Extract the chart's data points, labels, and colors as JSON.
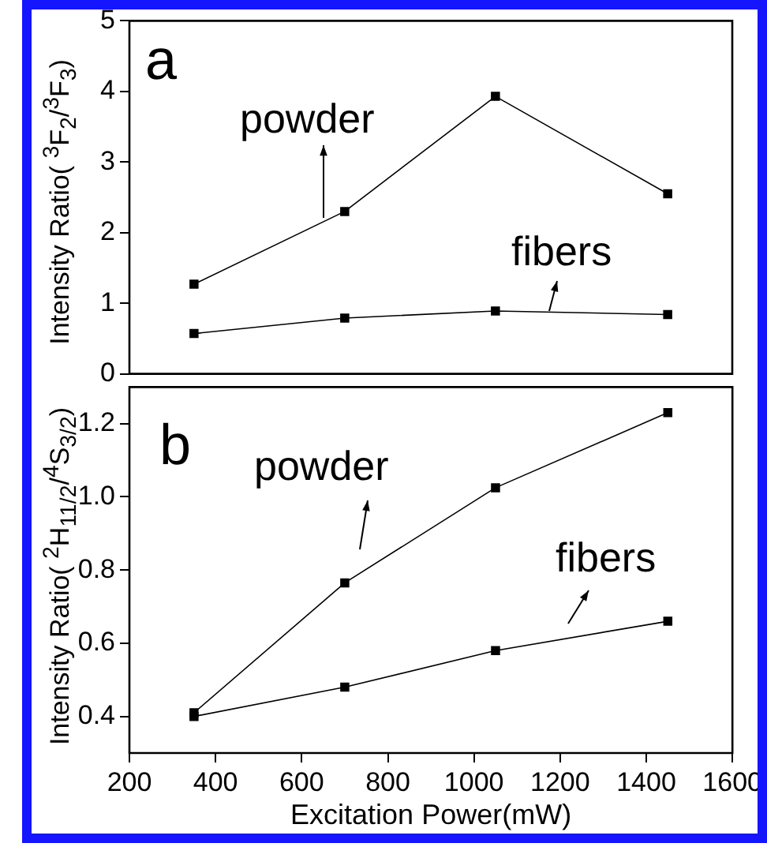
{
  "chart_data": [
    {
      "type": "line",
      "annotations": [
        "a"
      ],
      "ylabel": "Intensity Ratio( $^{3}$F$_{2}$/$^{3}$F$_{3}$)",
      "x": [
        350,
        700,
        1050,
        1450
      ],
      "series": [
        {
          "name": "powder",
          "color": "#000000",
          "values": [
            1.27,
            2.3,
            3.93,
            2.55
          ]
        },
        {
          "name": "fibers",
          "color": "#000000",
          "values": [
            0.57,
            0.79,
            0.89,
            0.84
          ]
        }
      ],
      "xlim": [
        200,
        1600
      ],
      "xticks": [
        200,
        400,
        600,
        800,
        1000,
        1200,
        1400,
        1600
      ],
      "ylim": [
        0,
        5
      ],
      "yticks": [
        0,
        1,
        2,
        3,
        4,
        5
      ],
      "tick_labels": "y",
      "marker": "square",
      "line_style": "solid"
    },
    {
      "type": "line",
      "annotations": [
        "b"
      ],
      "xlabel": "Excitation Power(mW)",
      "ylabel": "Intensity Ratio( $^{2}$H$_{11/2}$/$^{4}$S$_{3/2}$)",
      "x": [
        350,
        700,
        1050,
        1450
      ],
      "series": [
        {
          "name": "powder",
          "color": "#000000",
          "values": [
            0.41,
            0.765,
            1.025,
            1.23
          ]
        },
        {
          "name": "fibers",
          "color": "#000000",
          "values": [
            0.4,
            0.48,
            0.58,
            0.66
          ]
        }
      ],
      "xlim": [
        200,
        1600
      ],
      "xticks": [
        200,
        400,
        600,
        800,
        1000,
        1200,
        1400,
        1600
      ],
      "ylim": [
        0.3,
        1.3
      ],
      "yticks": [
        0.4,
        0.6,
        0.8,
        {
          "value": 1,
          "label": "1.0"
        },
        1.2
      ],
      "marker": "square",
      "line_style": "solid"
    }
  ]
}
